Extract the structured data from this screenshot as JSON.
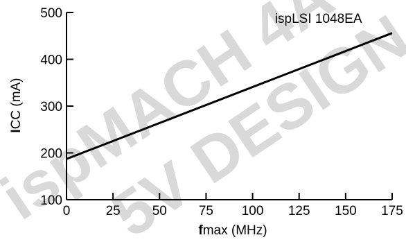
{
  "watermark": {
    "line1": "ispMACH 4A",
    "line2": "5V DESIGN"
  },
  "chart_data": {
    "type": "line",
    "title": "",
    "xlabel": {
      "bold_prefix": "f",
      "rest": "max (MHz)"
    },
    "ylabel": {
      "bold_prefix": "I",
      "rest": "CC (mA)"
    },
    "xlim": [
      0,
      175
    ],
    "ylim": [
      100,
      500
    ],
    "x_ticks": [
      0,
      25,
      50,
      75,
      100,
      125,
      150,
      175
    ],
    "y_ticks": [
      100,
      200,
      300,
      400,
      500
    ],
    "x_tick_labels": [
      "0",
      "25",
      "50",
      "75",
      "100",
      "125",
      "150",
      "175"
    ],
    "y_tick_labels": [
      "100",
      "200",
      "300",
      "400",
      "500"
    ],
    "grid": false,
    "series": [
      {
        "name": "ispLSI 1048EA",
        "x": [
          0,
          175
        ],
        "y": [
          187,
          456
        ]
      }
    ],
    "annotations": [
      {
        "text": "ispLSI 1048EA",
        "x": 112,
        "y": 478
      }
    ],
    "colors": {
      "line": "#000000",
      "watermark": "#d9d9d9"
    }
  }
}
